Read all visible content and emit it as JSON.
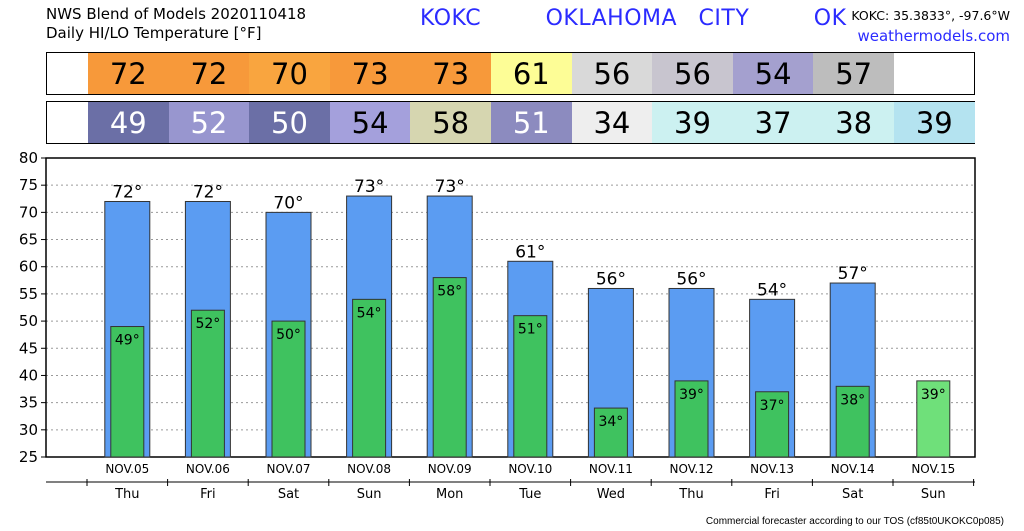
{
  "header": {
    "line1": "NWS Blend of Models 2020110418",
    "line2": "Daily HI/LO Temperature [°F]",
    "station": "KOKC   OKLAHOMA CITY   OK",
    "coords": "KOKC: 35.3833°, -97.6°W",
    "site": "weathermodels.com"
  },
  "hi_strip": {
    "values": [
      "72",
      "72",
      "70",
      "73",
      "73",
      "61",
      "56",
      "56",
      "54",
      "57"
    ],
    "colors": [
      "#f7993a",
      "#f7993a",
      "#f9a53f",
      "#f7993a",
      "#f7993a",
      "#fdfd96",
      "#d9d9d9",
      "#c8c5cf",
      "#a4a0cf",
      "#bdbdbd"
    ]
  },
  "lo_strip": {
    "values": [
      "49",
      "52",
      "50",
      "54",
      "58",
      "51",
      "34",
      "39",
      "37",
      "38",
      "39"
    ],
    "colors": [
      "#6b6fa6",
      "#9896cf",
      "#6b6fa6",
      "#a4a0dc",
      "#d6d6b0",
      "#8c8bbf",
      "#eeeeee",
      "#ccf1f1",
      "#ccf1f1",
      "#ccf1f1",
      "#b4e3f0"
    ],
    "text_colors": [
      "#ffffff",
      "#ffffff",
      "#ffffff",
      "#000000",
      "#000000",
      "#ffffff",
      "#000000",
      "#000000",
      "#000000",
      "#000000",
      "#000000"
    ]
  },
  "chart_data": {
    "type": "bar",
    "categories": [
      "NOV.05",
      "NOV.06",
      "NOV.07",
      "NOV.08",
      "NOV.09",
      "NOV.10",
      "NOV.11",
      "NOV.12",
      "NOV.13",
      "NOV.14",
      "NOV.15"
    ],
    "weekdays": [
      "Thu",
      "Fri",
      "Sat",
      "Sun",
      "Mon",
      "Tue",
      "Wed",
      "Thu",
      "Fri",
      "Sat",
      "Sun"
    ],
    "series": [
      {
        "values": [
          72,
          72,
          70,
          73,
          73,
          61,
          56,
          56,
          54,
          57,
          null
        ],
        "color": "#5b9cf2"
      },
      {
        "values": [
          49,
          52,
          50,
          54,
          58,
          51,
          34,
          39,
          37,
          38,
          39
        ],
        "color": "#3fc25f"
      }
    ],
    "hi_labels": [
      "72°",
      "72°",
      "70°",
      "73°",
      "73°",
      "61°",
      "56°",
      "56°",
      "54°",
      "57°",
      ""
    ],
    "lo_labels": [
      "49°",
      "52°",
      "50°",
      "54°",
      "58°",
      "51°",
      "34°",
      "39°",
      "37°",
      "38°",
      "39°"
    ],
    "last_lo_color": "#6fe07a",
    "ylim": [
      25,
      80
    ],
    "yticks": [
      25,
      30,
      35,
      40,
      45,
      50,
      55,
      60,
      65,
      70,
      75,
      80
    ],
    "grid": true
  },
  "footer": "Commercial forecaster according to our TOS (cf85t0UKOKC0p085)"
}
